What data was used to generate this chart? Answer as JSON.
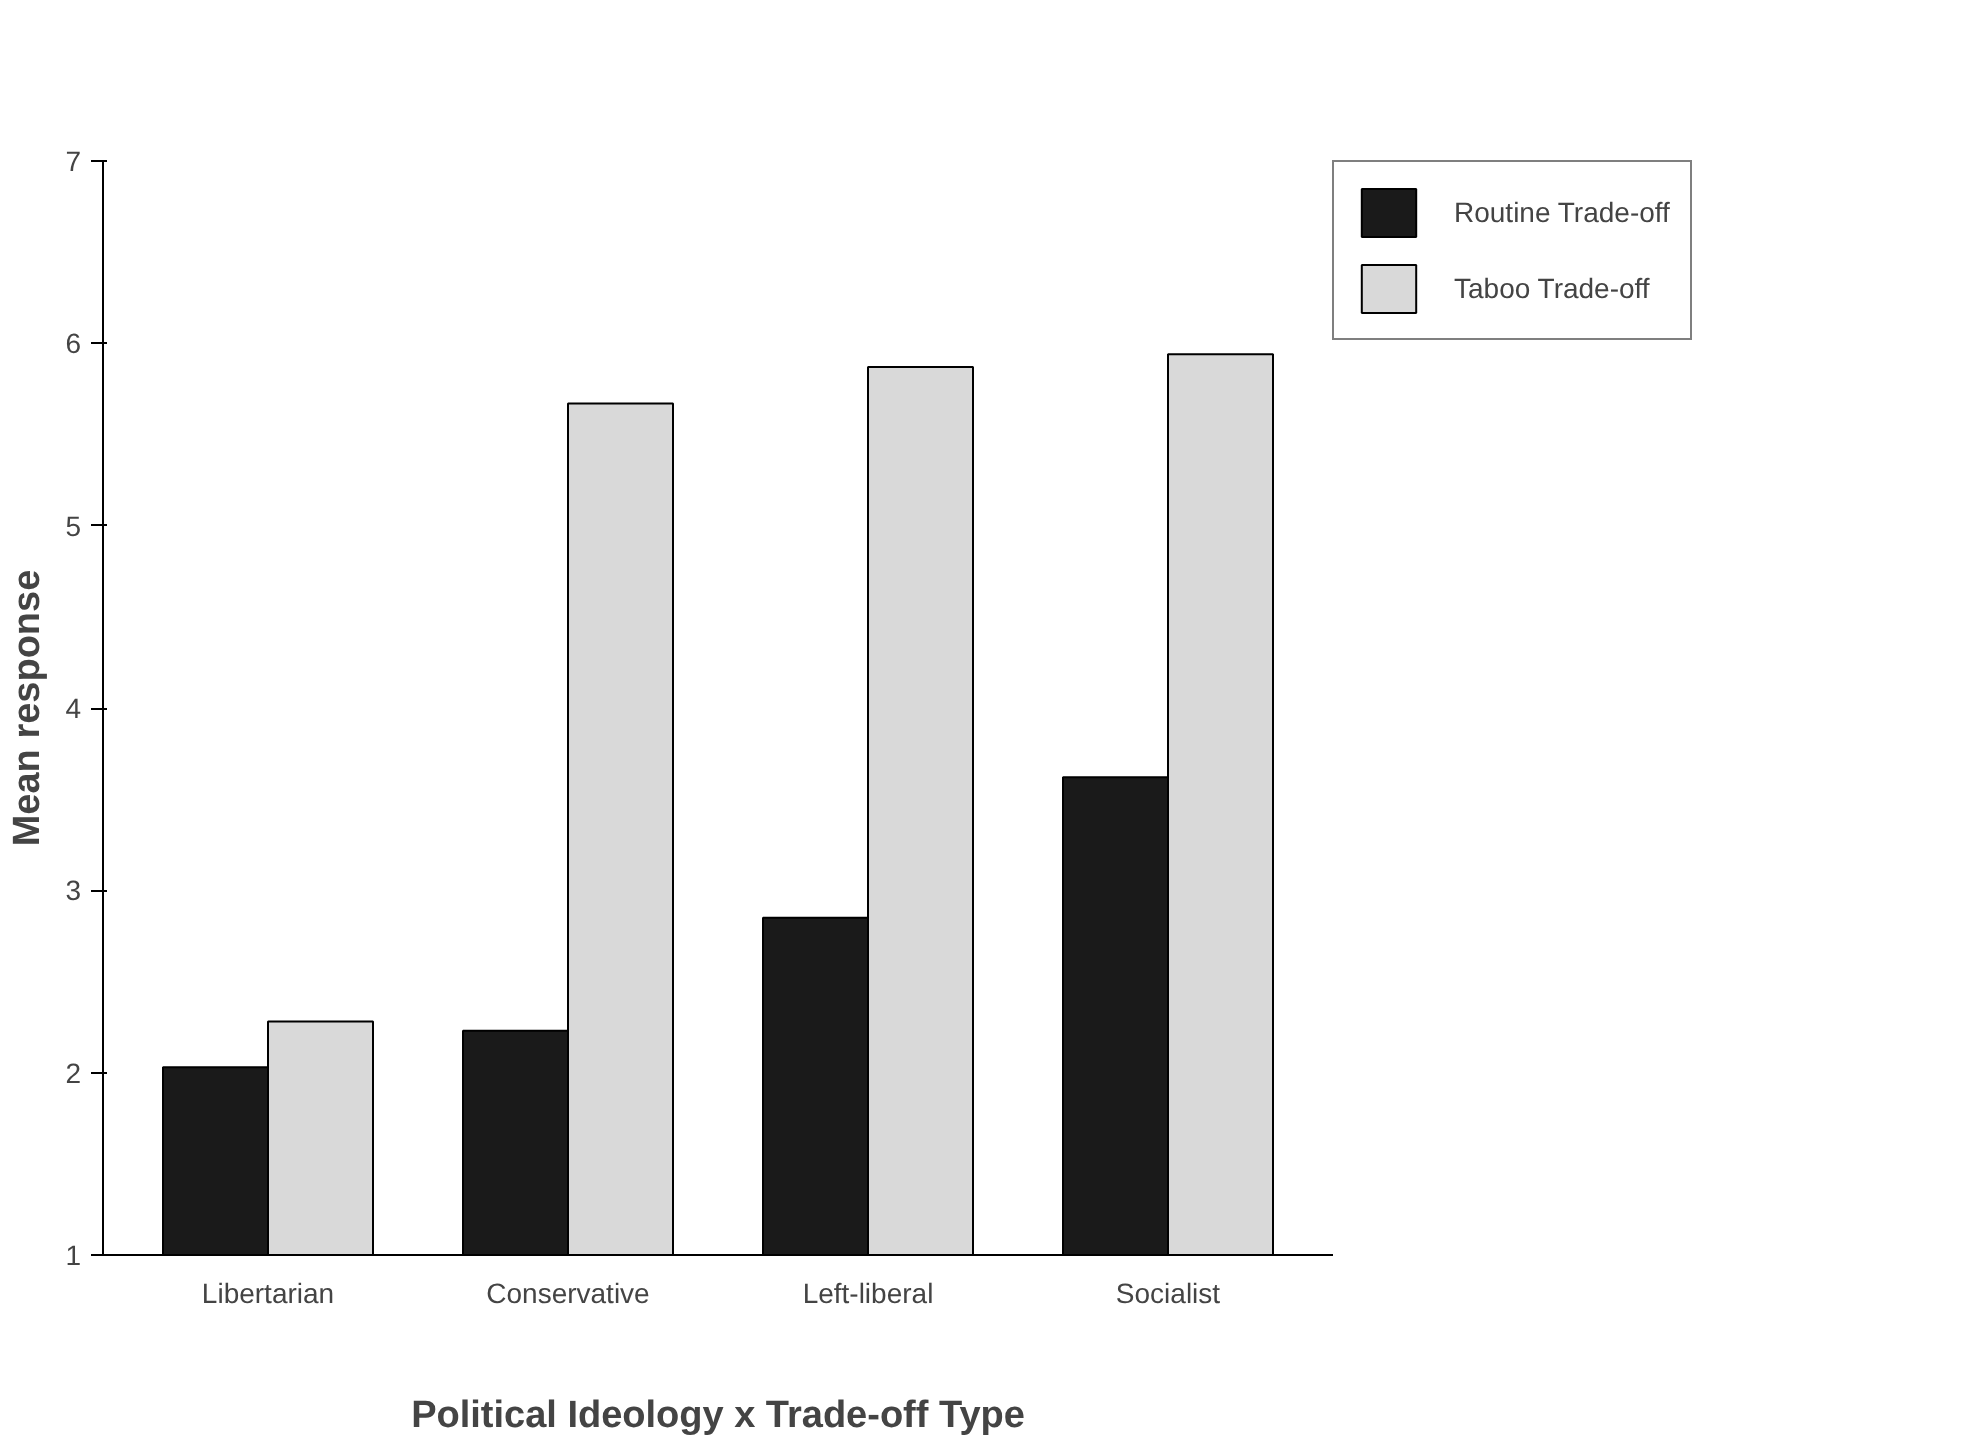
{
  "chart_data": {
    "type": "bar",
    "xlabel": "Political Ideology x Trade-off Type",
    "ylabel": "Mean response",
    "categories": [
      "Libertarian",
      "Conservative",
      "Left-liberal",
      "Socialist"
    ],
    "series": [
      {
        "name": "Routine Trade-off",
        "color": "#1a1a1a",
        "values": [
          2.03,
          2.23,
          2.85,
          3.62
        ]
      },
      {
        "name": "Taboo Trade-off",
        "color": "#d9d9d9",
        "values": [
          2.28,
          5.67,
          5.87,
          5.94
        ]
      }
    ],
    "ylim": [
      1,
      7
    ],
    "yticks": [
      1,
      2,
      3,
      4,
      5,
      6,
      7
    ],
    "grid": false,
    "legend": "top right"
  }
}
